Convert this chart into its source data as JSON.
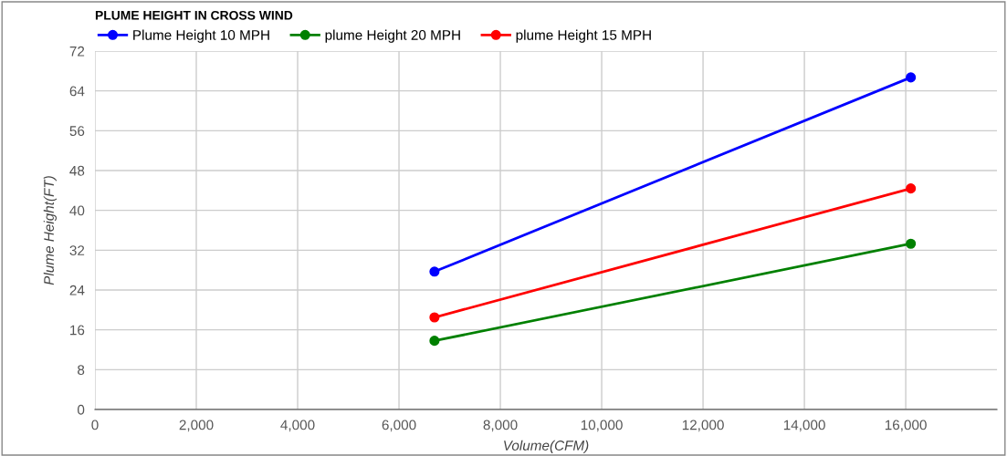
{
  "chart_data": {
    "type": "line",
    "title": "PLUME HEIGHT IN CROSS WIND",
    "xlabel": "Volume(CFM)",
    "ylabel": "Plume Height(FT)",
    "x": [
      6700,
      16100
    ],
    "series": [
      {
        "name": "Plume Height 10 MPH",
        "color": "#0000ff",
        "values": [
          27.7,
          66.7
        ]
      },
      {
        "name": "plume Height 20 MPH",
        "color": "#008000",
        "values": [
          13.8,
          33.3
        ]
      },
      {
        "name": "plume Height 15 MPH",
        "color": "#ff0000",
        "values": [
          18.5,
          44.4
        ]
      }
    ],
    "xlim": [
      0,
      17800
    ],
    "xticks": [
      {
        "value": 0,
        "label": "0"
      },
      {
        "value": 2000,
        "label": "2,000"
      },
      {
        "value": 4000,
        "label": "4,000"
      },
      {
        "value": 6000,
        "label": "6,000"
      },
      {
        "value": 8000,
        "label": "8,000"
      },
      {
        "value": 10000,
        "label": "10,000"
      },
      {
        "value": 12000,
        "label": "12,000"
      },
      {
        "value": 14000,
        "label": "14,000"
      },
      {
        "value": 16000,
        "label": "16,000"
      }
    ],
    "ylim": [
      0,
      72
    ],
    "yticks": [
      0,
      8,
      16,
      24,
      32,
      40,
      48,
      56,
      64,
      72
    ],
    "grid": true,
    "legend": "top left",
    "marker": "circle",
    "line_style": "solid"
  }
}
